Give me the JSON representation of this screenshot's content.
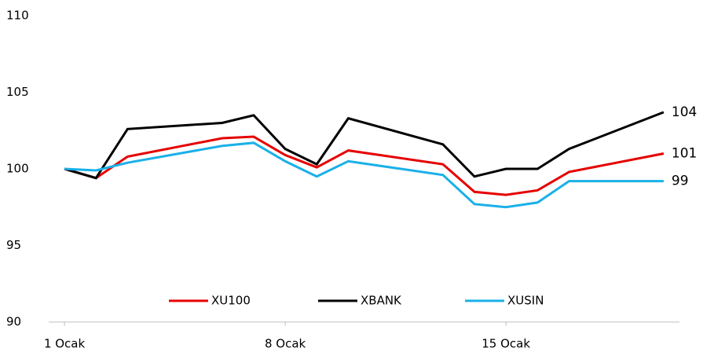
{
  "chart_data": {
    "type": "line",
    "x": [
      1,
      2,
      3,
      6,
      7,
      8,
      9,
      10,
      13,
      14,
      15,
      16,
      17,
      20
    ],
    "xlim": [
      0.5,
      20.5
    ],
    "xticks": [
      {
        "value": 1,
        "label": "1 Ocak"
      },
      {
        "value": 8,
        "label": "8 Ocak"
      },
      {
        "value": 15,
        "label": "15 Ocak"
      }
    ],
    "ylim": [
      90,
      110
    ],
    "yticks": [
      90,
      95,
      100,
      105,
      110
    ],
    "grid": false,
    "legend": "bottom",
    "series": [
      {
        "name": "XU100",
        "color": "#e60000",
        "values": [
          100,
          99.4,
          100.8,
          102.0,
          102.1,
          100.9,
          100.1,
          101.2,
          100.3,
          98.5,
          98.3,
          98.6,
          99.8,
          101.0
        ],
        "value_labels": [
          null,
          null,
          null,
          null,
          null,
          null,
          null,
          null,
          null,
          null,
          null,
          null,
          null,
          "101"
        ]
      },
      {
        "name": "XBANK",
        "color": "#000000",
        "values": [
          100,
          99.4,
          102.6,
          103.0,
          103.5,
          101.3,
          100.3,
          103.3,
          101.6,
          99.5,
          100.0,
          100.0,
          101.3,
          103.7
        ],
        "value_labels": [
          null,
          null,
          null,
          null,
          null,
          null,
          null,
          null,
          null,
          null,
          null,
          null,
          null,
          "104"
        ]
      },
      {
        "name": "XUSIN",
        "color": "#1ab0e8",
        "values": [
          100,
          99.9,
          100.4,
          101.5,
          101.7,
          100.5,
          99.5,
          100.5,
          99.6,
          97.7,
          97.5,
          97.8,
          99.2,
          99.2
        ],
        "value_labels": [
          null,
          null,
          null,
          null,
          null,
          null,
          null,
          null,
          null,
          null,
          null,
          null,
          null,
          "99"
        ]
      }
    ]
  }
}
